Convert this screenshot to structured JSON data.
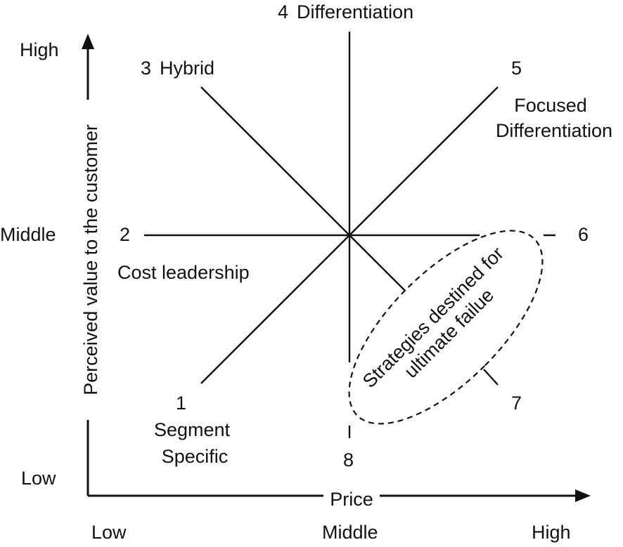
{
  "y_axis": {
    "title": "Perceived value to the customer",
    "levels": {
      "high": "High",
      "middle": "Middle",
      "low": "Low"
    }
  },
  "x_axis": {
    "title": "Price",
    "levels": {
      "low": "Low",
      "middle": "Middle",
      "high": "High"
    }
  },
  "strategies": [
    {
      "number": "1",
      "name": "Segment",
      "name_line2": "Specific"
    },
    {
      "number": "2",
      "name": "Cost leadership"
    },
    {
      "number": "3",
      "name": "Hybrid"
    },
    {
      "number": "4",
      "name": "Differentiation"
    },
    {
      "number": "5",
      "name": "Focused",
      "name_line2": "Differentiation"
    },
    {
      "number": "6"
    },
    {
      "number": "7"
    },
    {
      "number": "8"
    }
  ],
  "failure_zone": {
    "line1": "Strategies destined for",
    "line2": "ultimate failue"
  }
}
